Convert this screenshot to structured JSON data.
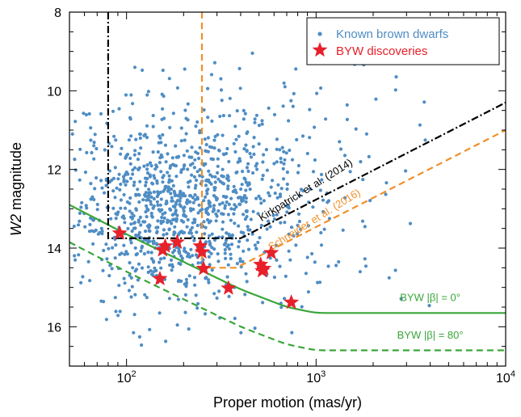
{
  "chart_data": {
    "type": "scatter",
    "xlabel": "Proper motion (mas/yr)",
    "ylabel_italic": "W2",
    "ylabel_rest": " magnitude",
    "xscale": "log",
    "xlim": [
      50,
      10000
    ],
    "ylim": [
      17,
      8
    ],
    "x_ticks": [
      {
        "value": 100,
        "base": "10",
        "exp": "2"
      },
      {
        "value": 1000,
        "base": "10",
        "exp": "3"
      },
      {
        "value": 10000,
        "base": "10",
        "exp": "4"
      }
    ],
    "y_ticks": [
      8,
      10,
      12,
      14,
      16
    ],
    "colors": {
      "known": "#4f8dc4",
      "byw": "#e8202a",
      "green": "#3aa63a",
      "orange": "#f0902a",
      "black": "#000000"
    },
    "legend": {
      "position": "top-right",
      "items": [
        {
          "label": "Known brown dwarfs",
          "color": "#4f8dc4",
          "marker": "dot"
        },
        {
          "label": "BYW discoveries",
          "color": "#e8202a",
          "marker": "star"
        }
      ]
    },
    "annotations": {
      "kirkpatrick": {
        "text": "Kirkpatrick et al. (2014)",
        "color": "#000000",
        "at": [
          900,
          12.6
        ]
      },
      "schneider": {
        "text": "Schneider et al. (2016)",
        "color": "#f0902a",
        "at": [
          1000,
          13.35
        ]
      },
      "byw0": {
        "text": "BYW |β| = 0°",
        "color": "#3aa63a",
        "at": [
          4000,
          15.35
        ]
      },
      "byw80": {
        "text": "BYW |β| = 80°",
        "color": "#3aa63a",
        "at": [
          4000,
          16.3
        ]
      }
    },
    "byw_discoveries": {
      "x": [
        92,
        150,
        155,
        160,
        185,
        245,
        250,
        255,
        345,
        510,
        520,
        530,
        580,
        740
      ],
      "y": [
        13.62,
        14.78,
        14.05,
        13.95,
        13.85,
        13.95,
        14.1,
        14.52,
        15.02,
        14.42,
        14.58,
        14.52,
        14.12,
        15.38
      ]
    },
    "curves": {
      "kirkpatrick_limit": {
        "style": "dash-dot",
        "color": "#000000",
        "x": [
          80,
          80,
          80,
          400,
          10000
        ],
        "y": [
          8,
          8,
          13.75,
          13.75,
          10.3
        ]
      },
      "schneider_limit": {
        "style": "dashed",
        "color": "#f0902a",
        "x": [
          250,
          250,
          250,
          380,
          10000
        ],
        "y": [
          8,
          8,
          14.5,
          14.5,
          11.0
        ]
      },
      "byw_beta0": {
        "style": "solid",
        "color": "#3aa63a",
        "x": [
          50,
          100,
          200,
          400,
          700,
          1000,
          10000
        ],
        "y": [
          12.9,
          13.65,
          14.35,
          15.05,
          15.5,
          15.65,
          15.65
        ]
      },
      "byw_beta80": {
        "style": "dashed",
        "color": "#3aa63a",
        "x": [
          50,
          100,
          200,
          400,
          700,
          1000,
          10000
        ],
        "y": [
          13.85,
          14.6,
          15.3,
          16.0,
          16.45,
          16.6,
          16.6
        ]
      }
    },
    "known_brown_dwarfs": {
      "n": 1150,
      "description": "scattered sample, density peak near 150-250 mas/yr and W2 12-14"
    }
  }
}
